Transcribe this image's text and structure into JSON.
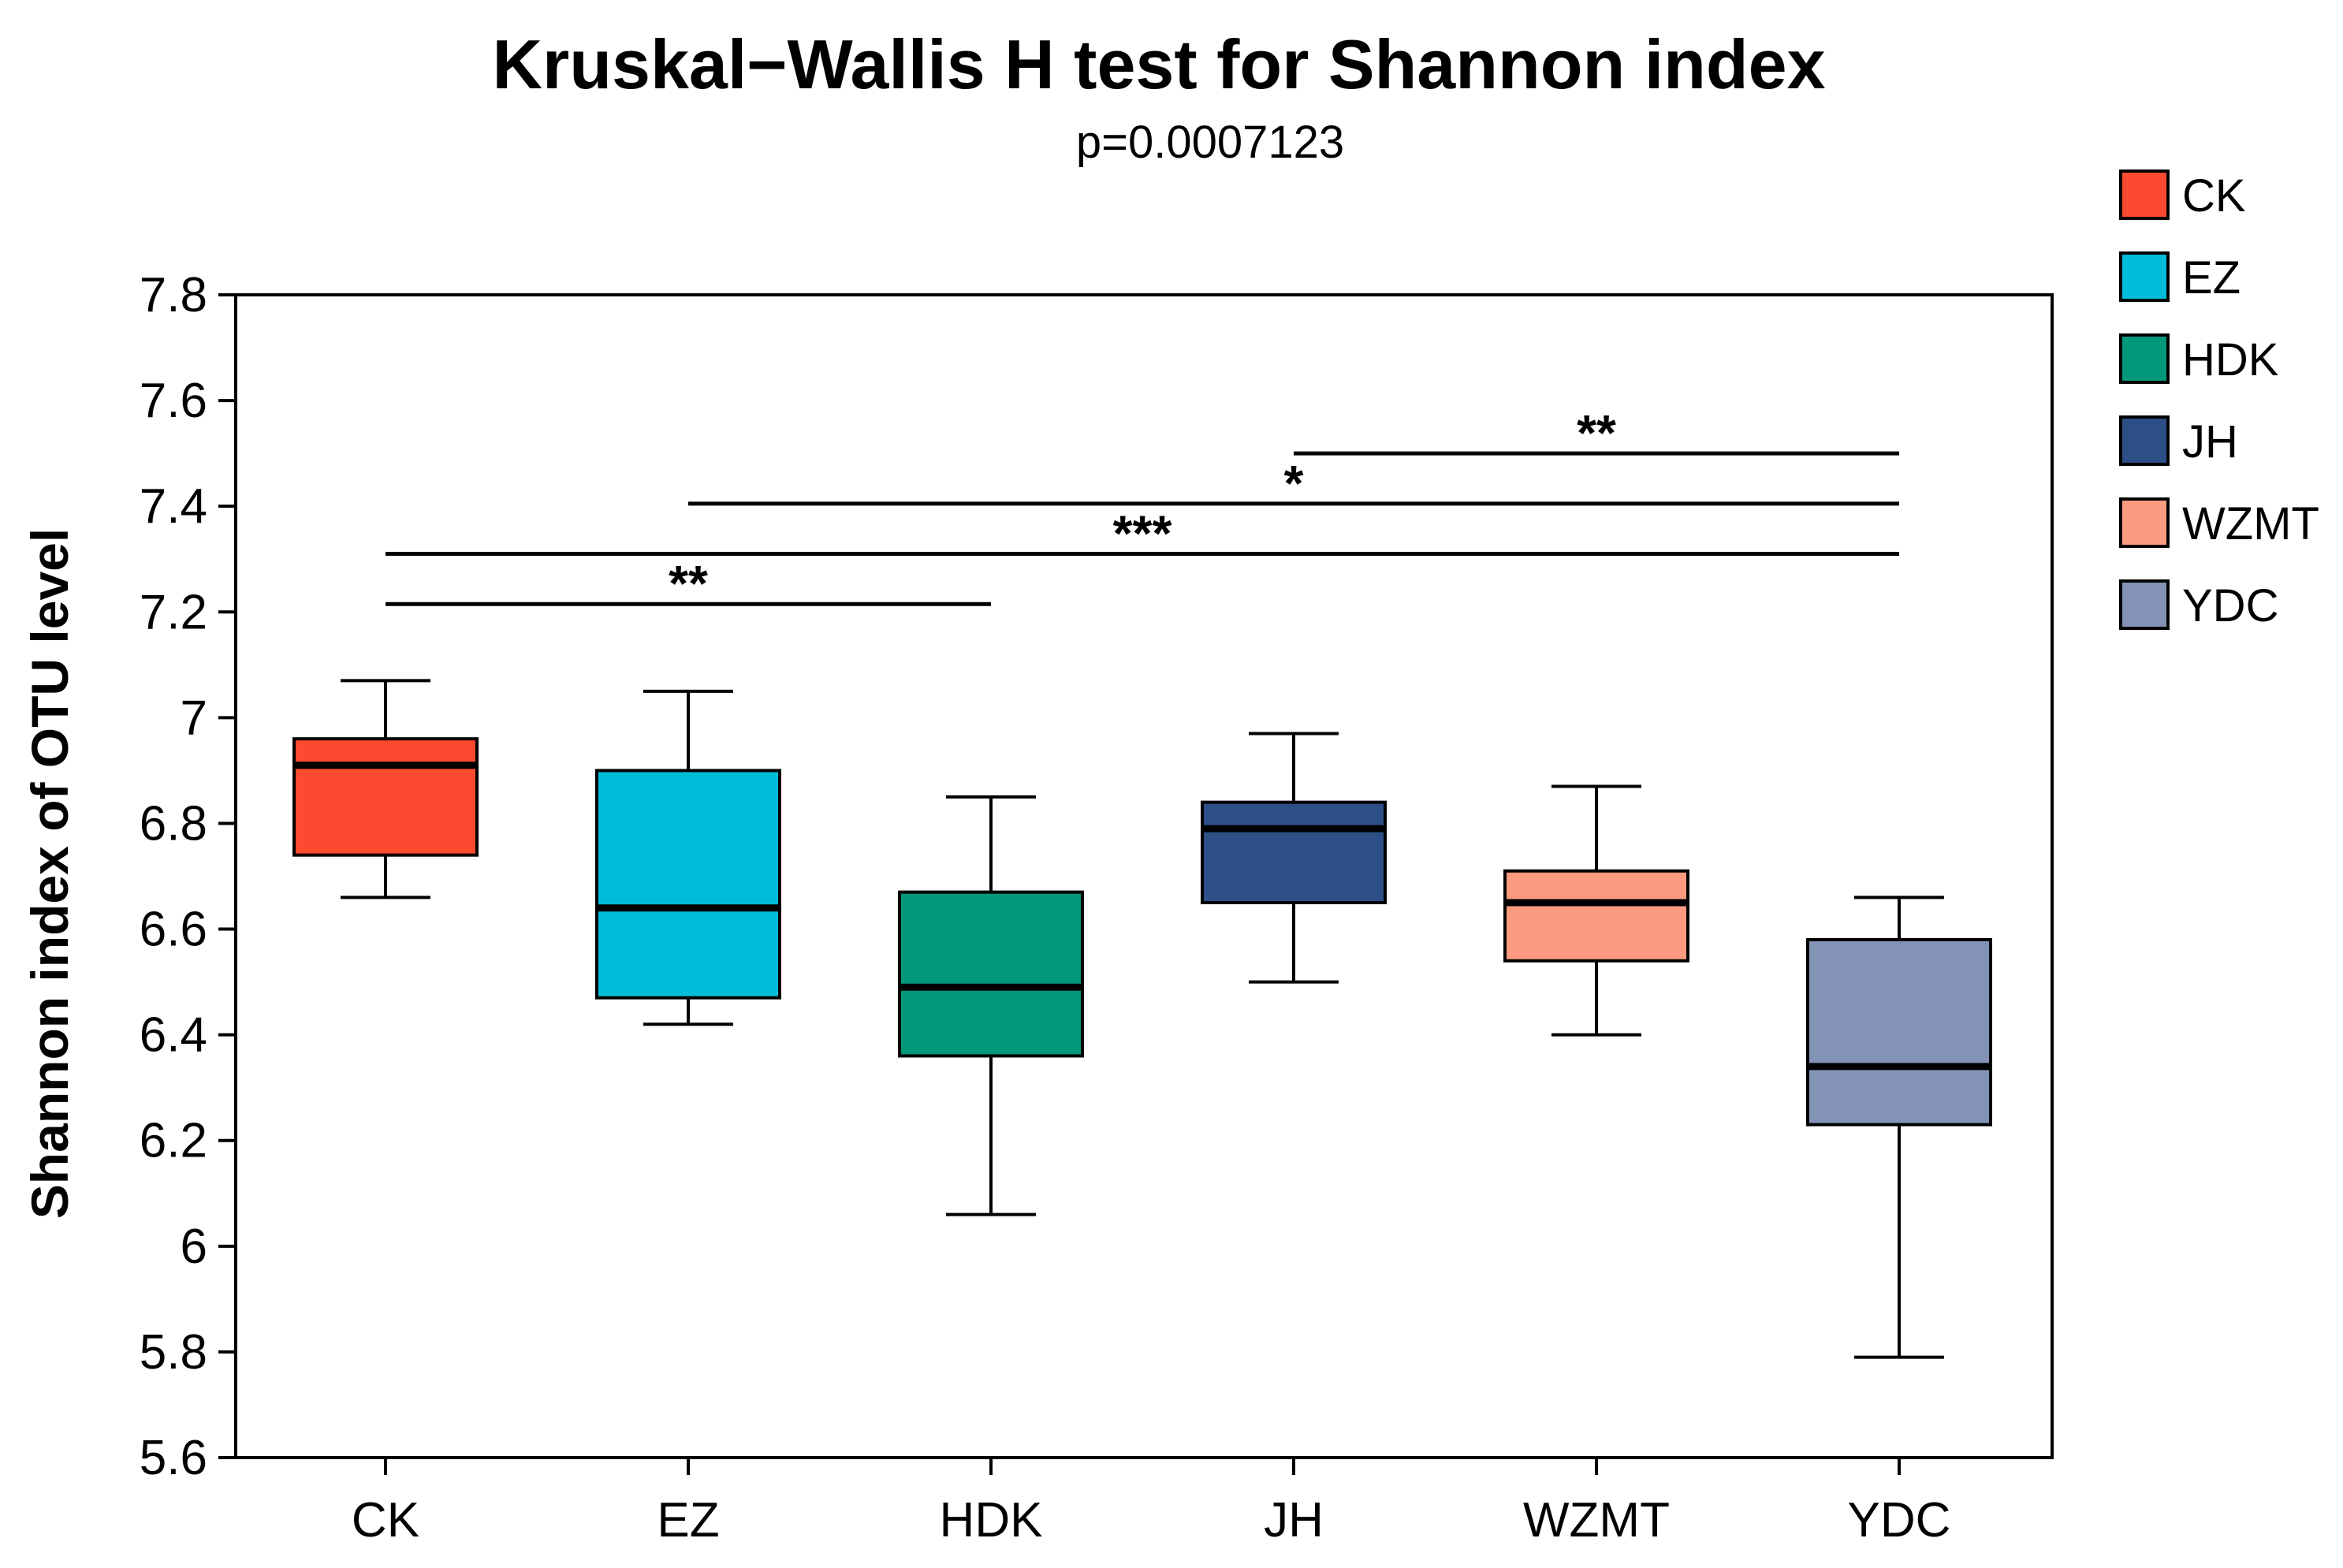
{
  "chart_data": {
    "type": "boxplot",
    "title": "Kruskal−Wallis H test for Shannon index",
    "subtitle": "p=0.0007123",
    "ylabel": "Shannon index of OTU level",
    "xlabel": "",
    "ylim": [
      5.6,
      7.8
    ],
    "yticks": [
      "5.6",
      "5.8",
      "6",
      "6.2",
      "6.4",
      "6.6",
      "6.8",
      "7",
      "7.2",
      "7.4",
      "7.6",
      "7.8"
    ],
    "categories": [
      "CK",
      "EZ",
      "HDK",
      "JH",
      "WZMT",
      "YDC"
    ],
    "boxes": [
      {
        "name": "CK",
        "color": "#fb4a2f",
        "min": 6.66,
        "q1": 6.74,
        "median": 6.91,
        "q3": 6.96,
        "max": 7.07
      },
      {
        "name": "EZ",
        "color": "#00bcd8",
        "min": 6.42,
        "q1": 6.47,
        "median": 6.64,
        "q3": 6.9,
        "max": 7.05
      },
      {
        "name": "HDK",
        "color": "#02987a",
        "min": 6.06,
        "q1": 6.36,
        "median": 6.49,
        "q3": 6.67,
        "max": 6.85
      },
      {
        "name": "JH",
        "color": "#2d4f87",
        "min": 6.5,
        "q1": 6.65,
        "median": 6.79,
        "q3": 6.84,
        "max": 6.97
      },
      {
        "name": "WZMT",
        "color": "#fd9b80",
        "min": 6.4,
        "q1": 6.54,
        "median": 6.65,
        "q3": 6.71,
        "max": 6.87
      },
      {
        "name": "YDC",
        "color": "#8293b5",
        "min": 5.79,
        "q1": 6.23,
        "median": 6.34,
        "q3": 6.58,
        "max": 6.66
      }
    ],
    "significance": [
      {
        "from": "CK",
        "to": "HDK",
        "y": 7.215,
        "label": "**"
      },
      {
        "from": "CK",
        "to": "YDC",
        "y": 7.31,
        "label": "***"
      },
      {
        "from": "EZ",
        "to": "YDC",
        "y": 7.405,
        "label": "*"
      },
      {
        "from": "JH",
        "to": "YDC",
        "y": 7.5,
        "label": "**"
      }
    ],
    "legend": {
      "position": "right",
      "entries": [
        {
          "label": "CK",
          "color": "#fb4a2f"
        },
        {
          "label": "EZ",
          "color": "#00bcd8"
        },
        {
          "label": "HDK",
          "color": "#02987a"
        },
        {
          "label": "JH",
          "color": "#2d4f87"
        },
        {
          "label": "WZMT",
          "color": "#fd9b80"
        },
        {
          "label": "YDC",
          "color": "#8293b5"
        }
      ]
    }
  }
}
